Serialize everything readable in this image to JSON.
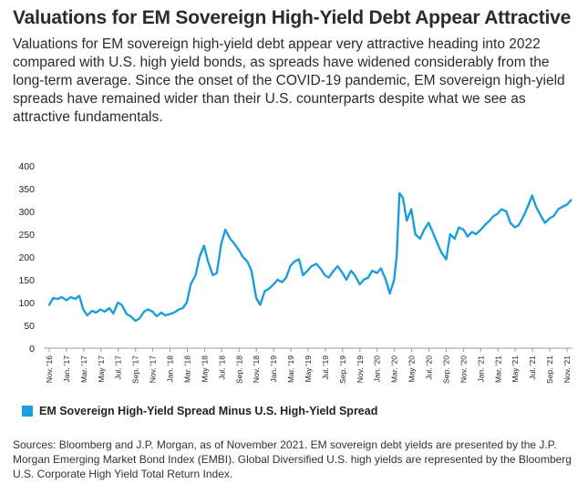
{
  "title": "Valuations for EM Sovereign High-Yield Debt Appear Attractive",
  "subtitle": "Valuations for EM sovereign high-yield debt appear very attractive heading into 2022 compared with U.S. high yield bonds, as spreads have widened considerably from the long-term average. Since the onset of the COVID-19 pandemic, EM sovereign high-yield spreads have remained wider than their U.S. counterparts despite what we see as attractive fundamentals.",
  "sources": "Sources: Bloomberg and J.P. Morgan, as of November 2021. EM sovereign debt yields are presented by the J.P. Morgan Emerging Market Bond Index (EMBI). Global Diversified U.S. high yields are represented by the Bloomberg U.S. Corporate High Yield Total Return Index.",
  "chart_data": {
    "type": "line",
    "title": "",
    "xlabel": "",
    "ylabel": "",
    "ylim": [
      0,
      400
    ],
    "yticks": [
      0,
      50,
      100,
      150,
      200,
      250,
      300,
      350,
      400
    ],
    "xlim": [
      "2016-11",
      "2021-11"
    ],
    "xticks": [
      "Nov. '16",
      "Jan. '17",
      "Mar. '17",
      "May '17",
      "Jul. '17",
      "Sep. '17",
      "Nov. '17",
      "Jan. '18",
      "Mar. '18",
      "May '18",
      "Jul. '18",
      "Sep. '18",
      "Nov. '18",
      "Jan. '19",
      "Mar. '19",
      "May '19",
      "Jul. '19",
      "Sep. '19",
      "Nov. '19",
      "Jan. '20",
      "Mar. '20",
      "May '20",
      "Jul. '20",
      "Sep. '20",
      "Nov. '20",
      "Jan. '21",
      "Mar. '21",
      "May '21",
      "Jul. '21",
      "Sep. '21",
      "Nov. '21"
    ],
    "grid": false,
    "legend_position": "bottom-left",
    "series": [
      {
        "name": "EM Sovereign High-Yield Spread Minus U.S. High-Yield Spread",
        "color": "#1a9fdc",
        "x": [
          "2016-11-01",
          "2016-11-15",
          "2016-12-01",
          "2016-12-15",
          "2017-01-01",
          "2017-01-15",
          "2017-02-01",
          "2017-02-15",
          "2017-03-01",
          "2017-03-15",
          "2017-04-01",
          "2017-04-15",
          "2017-05-01",
          "2017-05-15",
          "2017-06-01",
          "2017-06-15",
          "2017-07-01",
          "2017-07-15",
          "2017-08-01",
          "2017-08-15",
          "2017-09-01",
          "2017-09-15",
          "2017-10-01",
          "2017-10-15",
          "2017-11-01",
          "2017-11-15",
          "2017-12-01",
          "2017-12-15",
          "2018-01-01",
          "2018-01-15",
          "2018-02-01",
          "2018-02-15",
          "2018-03-01",
          "2018-03-15",
          "2018-04-01",
          "2018-04-15",
          "2018-05-01",
          "2018-05-15",
          "2018-06-01",
          "2018-06-15",
          "2018-07-01",
          "2018-07-15",
          "2018-08-01",
          "2018-08-15",
          "2018-09-01",
          "2018-09-15",
          "2018-10-01",
          "2018-10-15",
          "2018-11-01",
          "2018-11-15",
          "2018-12-01",
          "2018-12-15",
          "2019-01-01",
          "2019-01-15",
          "2019-02-01",
          "2019-02-15",
          "2019-03-01",
          "2019-03-15",
          "2019-04-01",
          "2019-04-15",
          "2019-05-01",
          "2019-05-15",
          "2019-06-01",
          "2019-06-15",
          "2019-07-01",
          "2019-07-15",
          "2019-08-01",
          "2019-08-15",
          "2019-09-01",
          "2019-09-15",
          "2019-10-01",
          "2019-10-15",
          "2019-11-01",
          "2019-11-15",
          "2019-12-01",
          "2019-12-15",
          "2020-01-01",
          "2020-01-15",
          "2020-02-01",
          "2020-02-15",
          "2020-03-01",
          "2020-03-10",
          "2020-03-20",
          "2020-04-01",
          "2020-04-15",
          "2020-05-01",
          "2020-05-15",
          "2020-06-01",
          "2020-06-15",
          "2020-07-01",
          "2020-07-15",
          "2020-08-01",
          "2020-08-15",
          "2020-09-01",
          "2020-09-15",
          "2020-10-01",
          "2020-10-15",
          "2020-11-01",
          "2020-11-15",
          "2020-12-01",
          "2020-12-15",
          "2021-01-01",
          "2021-01-15",
          "2021-02-01",
          "2021-02-15",
          "2021-03-01",
          "2021-03-15",
          "2021-04-01",
          "2021-04-15",
          "2021-05-01",
          "2021-05-15",
          "2021-06-01",
          "2021-06-15",
          "2021-07-01",
          "2021-07-15",
          "2021-08-01",
          "2021-08-15",
          "2021-09-01",
          "2021-09-15",
          "2021-10-01",
          "2021-10-15",
          "2021-11-01",
          "2021-11-15"
        ],
        "values": [
          95,
          110,
          108,
          112,
          105,
          112,
          108,
          115,
          85,
          72,
          82,
          78,
          85,
          80,
          88,
          76,
          100,
          95,
          75,
          70,
          60,
          65,
          80,
          85,
          80,
          70,
          78,
          72,
          75,
          78,
          85,
          88,
          100,
          140,
          160,
          200,
          225,
          190,
          160,
          165,
          230,
          260,
          240,
          230,
          215,
          200,
          190,
          170,
          110,
          95,
          125,
          130,
          140,
          150,
          145,
          155,
          180,
          190,
          195,
          160,
          170,
          180,
          185,
          175,
          160,
          155,
          170,
          180,
          165,
          150,
          170,
          160,
          140,
          150,
          155,
          170,
          165,
          175,
          150,
          120,
          150,
          200,
          340,
          330,
          280,
          305,
          250,
          240,
          260,
          275,
          255,
          230,
          210,
          195,
          250,
          240,
          265,
          260,
          245,
          255,
          250,
          260,
          270,
          280,
          290,
          295,
          305,
          300,
          275,
          265,
          270,
          290,
          310,
          335,
          310,
          290,
          275,
          285,
          290,
          305,
          310,
          315,
          325
        ]
      }
    ]
  }
}
